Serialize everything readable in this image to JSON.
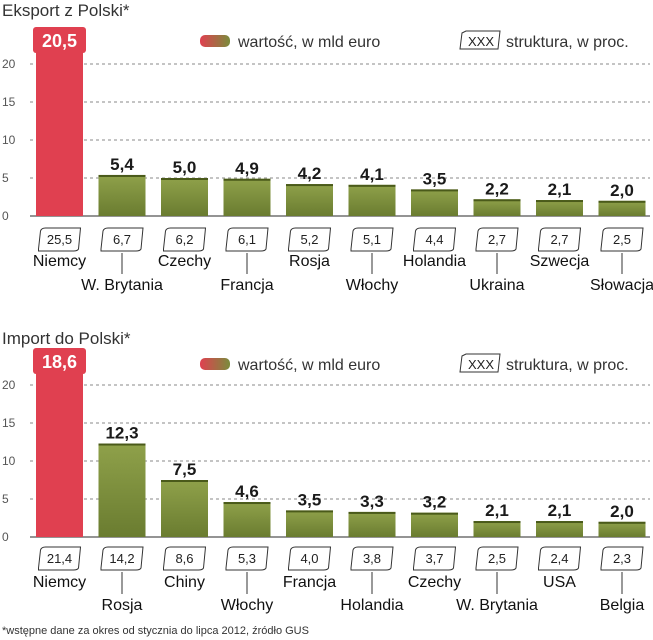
{
  "legend": {
    "value": "wartość, w mld euro",
    "share_box": "XXX",
    "share": "struktura, w proc."
  },
  "footnote": "*wstępne dane za okres od stycznia do lipca 2012, źródło GUS",
  "colors": {
    "bar_green": "#7a8c3c",
    "bar_red": "#e04050",
    "grid": "#888888"
  },
  "chart_data": [
    {
      "type": "bar",
      "title": "Eksport z Polski*",
      "ylim": [
        0,
        20
      ],
      "yticks": [
        0,
        5,
        10,
        15,
        20
      ],
      "grid": true,
      "categories": [
        "Niemcy",
        "W. Brytania",
        "Czechy",
        "Francja",
        "Rosja",
        "Włochy",
        "Holandia",
        "Ukraina",
        "Szwecja",
        "Słowacja"
      ],
      "values": [
        20.5,
        5.4,
        5.0,
        4.9,
        4.2,
        4.1,
        3.5,
        2.2,
        2.1,
        2.0
      ],
      "value_labels": [
        "20,5",
        "5,4",
        "5,0",
        "4,9",
        "4,2",
        "4,1",
        "3,5",
        "2,2",
        "2,1",
        "2,0"
      ],
      "shares": [
        "25,5",
        "6,7",
        "6,2",
        "6,1",
        "5,2",
        "5,1",
        "4,4",
        "2,7",
        "2,7",
        "2,5"
      ],
      "series": [
        {
          "name": "wartość, w mld euro",
          "values": [
            20.5,
            5.4,
            5.0,
            4.9,
            4.2,
            4.1,
            3.5,
            2.2,
            2.1,
            2.0
          ]
        }
      ]
    },
    {
      "type": "bar",
      "title": "Import do Polski*",
      "ylim": [
        0,
        20
      ],
      "yticks": [
        0,
        5,
        10,
        15,
        20
      ],
      "grid": true,
      "categories": [
        "Niemcy",
        "Rosja",
        "Chiny",
        "Włochy",
        "Francja",
        "Holandia",
        "Czechy",
        "W. Brytania",
        "USA",
        "Belgia"
      ],
      "values": [
        18.6,
        12.3,
        7.5,
        4.6,
        3.5,
        3.3,
        3.2,
        2.1,
        2.1,
        2.0
      ],
      "value_labels": [
        "18,6",
        "12,3",
        "7,5",
        "4,6",
        "3,5",
        "3,3",
        "3,2",
        "2,1",
        "2,1",
        "2,0"
      ],
      "shares": [
        "21,4",
        "14,2",
        "8,6",
        "5,3",
        "4,0",
        "3,8",
        "3,7",
        "2,5",
        "2,4",
        "2,3"
      ],
      "series": [
        {
          "name": "wartość, w mld euro",
          "values": [
            18.6,
            12.3,
            7.5,
            4.6,
            3.5,
            3.3,
            3.2,
            2.1,
            2.1,
            2.0
          ]
        }
      ]
    }
  ]
}
